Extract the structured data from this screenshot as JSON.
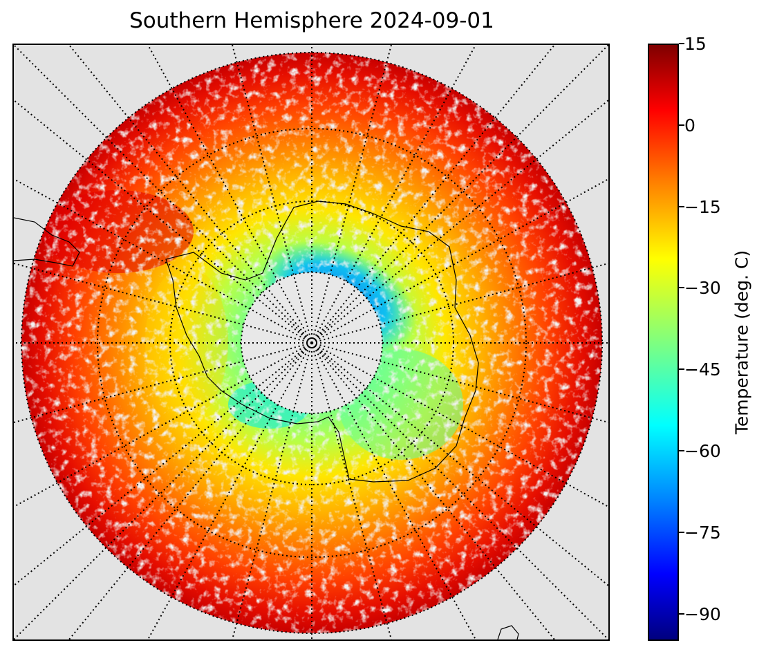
{
  "title": "Southern Hemisphere 2024-09-01",
  "colorbar": {
    "label": "Temperature (deg. C)",
    "min": -95,
    "max": 15,
    "ticks": [
      "15",
      "0",
      "−15",
      "−30",
      "−45",
      "−60",
      "−75",
      "−90"
    ],
    "tick_values": [
      15,
      0,
      -15,
      -30,
      -45,
      -60,
      -75,
      -90
    ],
    "colormap": "jet"
  },
  "map": {
    "projection": "south-polar-stereographic",
    "background_color": "#e3e3e3",
    "graticule_style": "dotted",
    "coastline_color": "#000000"
  }
}
